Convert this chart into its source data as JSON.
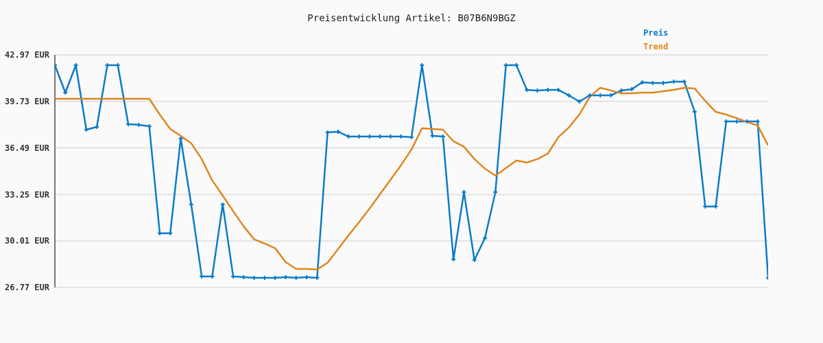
{
  "chart_data": {
    "type": "line",
    "title": "Preisentwicklung Artikel: B07B6N9BGZ",
    "categories": [
      null,
      null,
      null,
      null,
      null,
      null,
      null,
      null,
      null,
      null,
      null,
      null,
      null,
      null,
      null,
      null,
      null,
      null,
      null,
      null,
      null,
      null,
      null,
      null,
      null,
      null,
      null,
      null,
      null,
      null,
      null,
      null,
      null,
      null,
      null,
      null,
      null,
      null,
      null,
      null,
      null,
      null,
      null,
      null,
      null,
      null,
      null,
      null,
      null,
      null,
      null,
      null,
      null,
      null,
      null,
      null,
      null,
      null,
      null,
      null,
      null,
      null,
      null,
      null,
      null,
      null,
      null,
      null,
      null
    ],
    "series": [
      {
        "name": "Preis",
        "color": "#0a7bc9",
        "marker": "cross",
        "values": [
          42.25,
          40.34,
          42.25,
          37.76,
          37.95,
          42.25,
          42.25,
          38.14,
          38.1,
          38.0,
          30.55,
          30.55,
          37.14,
          32.55,
          27.54,
          27.54,
          32.55,
          27.54,
          27.49,
          27.44,
          27.44,
          27.44,
          27.49,
          27.44,
          27.49,
          27.44,
          37.57,
          37.62,
          37.28,
          37.28,
          37.28,
          37.28,
          37.28,
          37.28,
          37.24,
          42.25,
          37.33,
          37.28,
          28.73,
          33.41,
          28.68,
          30.21,
          33.41,
          42.25,
          42.25,
          40.53,
          40.49,
          40.53,
          40.53,
          40.15,
          39.72,
          40.15,
          40.15,
          40.15,
          40.49,
          40.58,
          41.06,
          41.01,
          41.01,
          41.11,
          41.11,
          39.0,
          32.41,
          32.41,
          38.34,
          38.34,
          38.34,
          38.34,
          27.44
        ]
      },
      {
        "name": "Trend",
        "color": "#e0851f",
        "marker": "none",
        "values": [
          39.91,
          39.91,
          39.91,
          39.91,
          39.91,
          39.91,
          39.91,
          39.91,
          39.91,
          39.91,
          38.81,
          37.81,
          37.33,
          36.81,
          35.71,
          34.23,
          33.17,
          32.08,
          31.03,
          30.12,
          29.83,
          29.5,
          28.54,
          28.06,
          28.06,
          28.02,
          28.49,
          29.45,
          30.4,
          31.31,
          32.27,
          33.27,
          34.27,
          35.28,
          36.38,
          37.86,
          37.81,
          37.76,
          36.95,
          36.57,
          35.71,
          35.04,
          34.56,
          35.09,
          35.61,
          35.47,
          35.71,
          36.09,
          37.24,
          37.91,
          38.81,
          40.05,
          40.68,
          40.49,
          40.29,
          40.29,
          40.34,
          40.34,
          40.44,
          40.53,
          40.68,
          40.63,
          39.77,
          39.0,
          38.81,
          38.57,
          38.29,
          38.05,
          36.66
        ]
      }
    ],
    "ylim": [
      26.77,
      42.97
    ],
    "yticks": [
      {
        "value": 26.77,
        "label": "26.77 EUR"
      },
      {
        "value": 30.01,
        "label": "30.01 EUR"
      },
      {
        "value": 33.25,
        "label": "33.25 EUR"
      },
      {
        "value": 36.49,
        "label": "36.49 EUR"
      },
      {
        "value": 39.73,
        "label": "39.73 EUR"
      },
      {
        "value": 42.97,
        "label": "42.97 EUR"
      }
    ],
    "grid": "y",
    "legend": "top right",
    "tick_labels": "y",
    "line_style": "solid"
  }
}
